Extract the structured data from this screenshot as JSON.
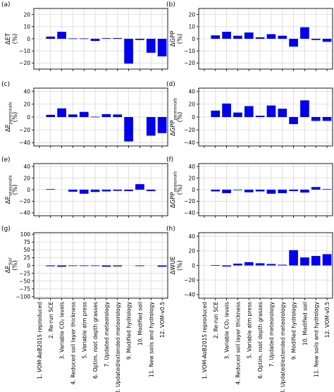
{
  "figure": {
    "bar_color": "#0000ee",
    "grid_color": "#d9d9d9"
  },
  "categories": [
    "1. VOM-AoB2015 reproduced",
    "2. Re-run SCE",
    "3. Variable CO₂ levels",
    "4. Reduced soil layer thickness",
    "5. Variable atm press",
    "6. Optim. root depth grasses",
    "7. Updated meteorology",
    "8. Updated/extended meteorology",
    "9. Modified hydrology",
    "10. Modified soil",
    "11. New soils and hydrology",
    "12. VOM-v0.5"
  ],
  "chart_data": [
    {
      "type": "bar",
      "panel": "(a)",
      "ylabel": "ΔET",
      "unit": "(%)",
      "ylim": [
        -25,
        25
      ],
      "yticks": [
        "20",
        "10",
        "0",
        "−10",
        "−20"
      ],
      "ytick_values": [
        20,
        10,
        0,
        -10,
        -20
      ],
      "values": [
        0,
        1.8,
        5.8,
        0.3,
        0.3,
        -1.8,
        0.5,
        0.6,
        -20.5,
        -1.0,
        -11.5,
        -14.5
      ]
    },
    {
      "type": "bar",
      "panel": "(b)",
      "ylabel": "ΔGPP",
      "unit": "(%)",
      "ylim": [
        -25,
        25
      ],
      "yticks": [
        "20",
        "10",
        "0",
        "−10",
        "−20"
      ],
      "ytick_values": [
        20,
        10,
        0,
        -10,
        -20
      ],
      "values": [
        0,
        2.8,
        5.8,
        2.5,
        5.2,
        1.2,
        3.8,
        2.5,
        -6.5,
        9.5,
        -1.0,
        -2.5
      ]
    },
    {
      "type": "bar",
      "panel": "(c)",
      "ylabel": "ΔE",
      "ylabel_sub": "perennials",
      "unit": "(%)",
      "ylim": [
        -45,
        45
      ],
      "yticks": [
        "40",
        "20",
        "0",
        "−20",
        "−40"
      ],
      "ytick_values": [
        40,
        20,
        0,
        -20,
        -40
      ],
      "values": [
        0,
        3.5,
        13.5,
        4.0,
        8.0,
        0.5,
        4.5,
        4.0,
        -38.0,
        0,
        -29.0,
        -25.0
      ]
    },
    {
      "type": "bar",
      "panel": "(d)",
      "ylabel": "ΔGPP",
      "ylabel_sub": "perennials",
      "unit": "(%)",
      "ylim": [
        -45,
        45
      ],
      "yticks": [
        "40",
        "20",
        "0",
        "−20",
        "−40"
      ],
      "ytick_values": [
        40,
        20,
        0,
        -20,
        -40
      ],
      "values": [
        0,
        10.0,
        21.0,
        7.0,
        17.0,
        2.0,
        18.0,
        13.0,
        -11.0,
        26.0,
        -6.0,
        -6.0
      ]
    },
    {
      "type": "bar",
      "panel": "(e)",
      "ylabel": "ΔE",
      "ylabel_sub": "seasonals",
      "unit": "(%)",
      "ylim": [
        -45,
        45
      ],
      "yticks": [
        "40",
        "20",
        "0",
        "−20",
        "−40"
      ],
      "ytick_values": [
        40,
        20,
        0,
        -20,
        -40
      ],
      "values": [
        0,
        1.0,
        0,
        -3.5,
        -7.0,
        -4.0,
        -3.0,
        -2.0,
        -2.5,
        9.5,
        -2.5,
        0
      ]
    },
    {
      "type": "bar",
      "panel": "(f)",
      "ylabel": "ΔGPP",
      "ylabel_sub": "seasonals",
      "unit": "(%)",
      "ylim": [
        -45,
        45
      ],
      "yticks": [
        "40",
        "20",
        "0",
        "−20",
        "−40"
      ],
      "ytick_values": [
        40,
        20,
        0,
        -20,
        -40
      ],
      "values": [
        0,
        -3.0,
        -6.0,
        -1.0,
        -4.5,
        -3.0,
        -7.0,
        -6.0,
        -2.5,
        -5.0,
        4.5,
        1.0
      ]
    },
    {
      "type": "bar",
      "panel": "(g)",
      "ylabel": "ΔE",
      "ylabel_sub": "Soil",
      "unit": "(%)",
      "ylim": [
        -105,
        105
      ],
      "yticks": [
        "100",
        "75",
        "50",
        "25",
        "0",
        "−25",
        "−50",
        "−75",
        "−100"
      ],
      "ytick_values": [
        100,
        75,
        50,
        25,
        0,
        -25,
        -50,
        -75,
        -100
      ],
      "values": [
        0,
        -2.5,
        -4.0,
        -1.0,
        -1.5,
        -0.5,
        -4.0,
        -3.0,
        0,
        -2.0,
        0,
        -4.0
      ]
    },
    {
      "type": "bar",
      "panel": "(h)",
      "ylabel": "ΔWUE",
      "unit": "(%)",
      "ylim": [
        -45,
        45
      ],
      "yticks": [
        "40",
        "20",
        "0",
        "−20",
        "−40"
      ],
      "ytick_values": [
        40,
        20,
        0,
        -20,
        -40
      ],
      "values": [
        0,
        0.5,
        -1.5,
        2.5,
        4.5,
        3.0,
        2.0,
        1.0,
        21.0,
        11.0,
        13.0,
        15.5
      ]
    }
  ]
}
